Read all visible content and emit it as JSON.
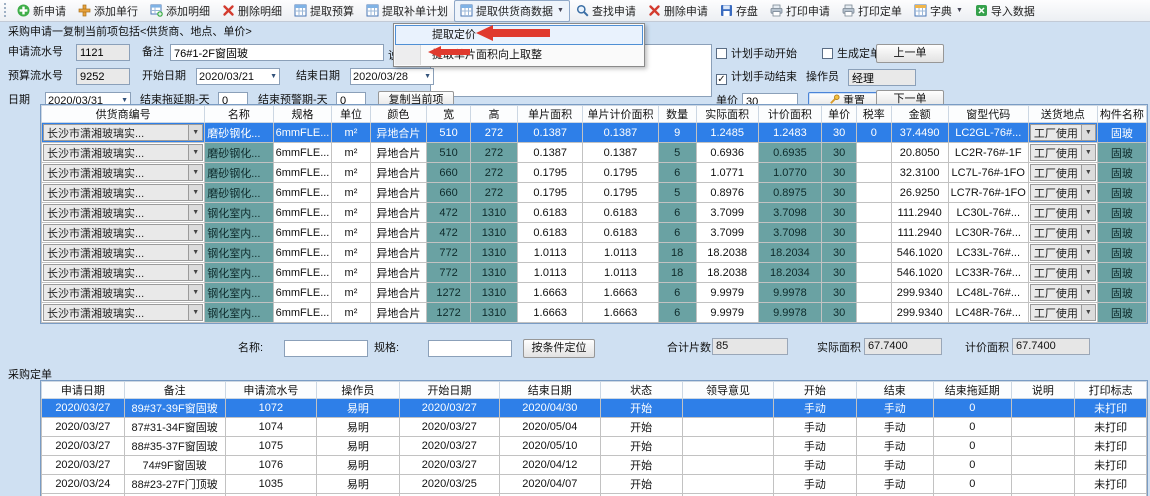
{
  "colors": {
    "accent_blue": "#2e7fe8",
    "teal": "#6aa2a3",
    "arrow_red": "#e03a2e",
    "panel": "#cfe0f2"
  },
  "toolbar": {
    "buttons": [
      {
        "name": "new-request-button",
        "label": "新申请",
        "icon": "plus-circle-icon",
        "type": "plus-circle"
      },
      {
        "name": "add-row-button",
        "label": "添加单行",
        "icon": "plus-icon",
        "type": "plus"
      },
      {
        "name": "add-detail-button",
        "label": "添加明细",
        "icon": "table-add-icon",
        "type": "table-add"
      },
      {
        "name": "delete-detail-button",
        "label": "删除明细",
        "icon": "delete-x-icon",
        "type": "x"
      },
      {
        "name": "extract-budget-button",
        "label": "提取预算",
        "icon": "table-icon",
        "type": "table"
      },
      {
        "name": "extract-supplement-plan-button",
        "label": "提取补单计划",
        "icon": "table-icon",
        "type": "table"
      },
      {
        "name": "extract-supplier-data-button",
        "label": "提取供货商数据",
        "icon": "table-icon",
        "type": "table",
        "dropdown": true,
        "pressed": true
      },
      {
        "name": "find-request-button",
        "label": "查找申请",
        "icon": "search-icon",
        "type": "search"
      },
      {
        "name": "delete-request-button",
        "label": "删除申请",
        "icon": "delete-x-icon",
        "type": "x"
      },
      {
        "name": "save-button",
        "label": "存盘",
        "icon": "save-icon",
        "type": "save"
      },
      {
        "name": "print-request-button",
        "label": "打印申请",
        "icon": "printer-icon",
        "type": "printer"
      },
      {
        "name": "print-order-button",
        "label": "打印定单",
        "icon": "printer-icon",
        "type": "printer"
      },
      {
        "name": "dictionary-button",
        "label": "字典",
        "icon": "table-icon",
        "type": "dict",
        "dropdown": true
      },
      {
        "name": "import-data-button",
        "label": "导入数据",
        "icon": "import-icon",
        "type": "import"
      }
    ]
  },
  "dropdown_menu": {
    "items": [
      {
        "name": "menu-item-extract-pricing",
        "label": "提取定价",
        "highlighted": true
      },
      {
        "name": "menu-item-extract-area-roundup",
        "label": "提取单片面积向上取整",
        "highlighted": false
      }
    ]
  },
  "form": {
    "title": "采购申请一复制当前项包括<供货商、地点、单价>",
    "serial_label": "申请流水号",
    "serial_value": "1121",
    "remark_label": "备注",
    "remark_value": "76#1-2F窗固玻",
    "desc_label": "说明",
    "budget_label": "预算流水号",
    "budget_value": "9252",
    "start_label": "开始日期",
    "start_value": "2020/03/21",
    "end_label": "结束日期",
    "end_value": "2020/03/28",
    "date_label": "日期",
    "date_value": "2020/03/31",
    "delay_label": "结束拖延期-天",
    "delay_value": "0",
    "warn_label": "结束预警期-天",
    "warn_value": "0",
    "copy_button": "复制当前项",
    "checkboxes": {
      "manual_start": {
        "label": "计划手动开始",
        "checked": false
      },
      "gen_order": {
        "label": "生成定单",
        "checked": false
      },
      "manual_end": {
        "label": "计划手动结束",
        "checked": true
      }
    },
    "operator_label": "操作员",
    "operator_value": "经理",
    "price_label": "单价",
    "price_value": "30",
    "reset_button": "重置",
    "prev_button": "上一单",
    "next_button": "下一单"
  },
  "table1": {
    "columns": [
      "供货商编号",
      "名称",
      "规格",
      "单位",
      "颜色",
      "宽",
      "高",
      "单片面积",
      "单片计价面积",
      "数量",
      "实际面积",
      "计价面积",
      "单价",
      "税率",
      "金额",
      "窗型代码",
      "送货地点",
      "构件名称"
    ],
    "selected_row": 0,
    "rows": [
      [
        "长沙市潇湘玻璃实...",
        "磨砂钢化...",
        "6mmFLE...",
        "m²",
        "异地合片",
        "510",
        "272",
        "0.1387",
        "0.1387",
        "9",
        "1.2485",
        "1.2483",
        "30",
        "0",
        "37.4490",
        "LC2GL-76#...",
        "工厂使用",
        "固玻"
      ],
      [
        "长沙市潇湘玻璃实...",
        "磨砂钢化...",
        "6mmFLE...",
        "m²",
        "异地合片",
        "510",
        "272",
        "0.1387",
        "0.1387",
        "5",
        "0.6936",
        "0.6935",
        "30",
        "",
        "20.8050",
        "LC2R-76#-1F",
        "工厂使用",
        "固玻"
      ],
      [
        "长沙市潇湘玻璃实...",
        "磨砂钢化...",
        "6mmFLE...",
        "m²",
        "异地合片",
        "660",
        "272",
        "0.1795",
        "0.1795",
        "6",
        "1.0771",
        "1.0770",
        "30",
        "",
        "32.3100",
        "LC7L-76#-1FO",
        "工厂使用",
        "固玻"
      ],
      [
        "长沙市潇湘玻璃实...",
        "磨砂钢化...",
        "6mmFLE...",
        "m²",
        "异地合片",
        "660",
        "272",
        "0.1795",
        "0.1795",
        "5",
        "0.8976",
        "0.8975",
        "30",
        "",
        "26.9250",
        "LC7R-76#-1FO",
        "工厂使用",
        "固玻"
      ],
      [
        "长沙市潇湘玻璃实...",
        "钢化室内...",
        "6mmFLE...",
        "m²",
        "异地合片",
        "472",
        "1310",
        "0.6183",
        "0.6183",
        "6",
        "3.7099",
        "3.7098",
        "30",
        "",
        "111.2940",
        "LC30L-76#...",
        "工厂使用",
        "固玻"
      ],
      [
        "长沙市潇湘玻璃实...",
        "钢化室内...",
        "6mmFLE...",
        "m²",
        "异地合片",
        "472",
        "1310",
        "0.6183",
        "0.6183",
        "6",
        "3.7099",
        "3.7098",
        "30",
        "",
        "111.2940",
        "LC30R-76#...",
        "工厂使用",
        "固玻"
      ],
      [
        "长沙市潇湘玻璃实...",
        "钢化室内...",
        "6mmFLE...",
        "m²",
        "异地合片",
        "772",
        "1310",
        "1.0113",
        "1.0113",
        "18",
        "18.2038",
        "18.2034",
        "30",
        "",
        "546.1020",
        "LC33L-76#...",
        "工厂使用",
        "固玻"
      ],
      [
        "长沙市潇湘玻璃实...",
        "钢化室内...",
        "6mmFLE...",
        "m²",
        "异地合片",
        "772",
        "1310",
        "1.0113",
        "1.0113",
        "18",
        "18.2038",
        "18.2034",
        "30",
        "",
        "546.1020",
        "LC33R-76#...",
        "工厂使用",
        "固玻"
      ],
      [
        "长沙市潇湘玻璃实...",
        "钢化室内...",
        "6mmFLE...",
        "m²",
        "异地合片",
        "1272",
        "1310",
        "1.6663",
        "1.6663",
        "6",
        "9.9979",
        "9.9978",
        "30",
        "",
        "299.9340",
        "LC48L-76#...",
        "工厂使用",
        "固玻"
      ],
      [
        "长沙市潇湘玻璃实...",
        "钢化室内...",
        "6mmFLE...",
        "m²",
        "异地合片",
        "1272",
        "1310",
        "1.6663",
        "1.6663",
        "6",
        "9.9979",
        "9.9978",
        "30",
        "",
        "299.9340",
        "LC48R-76#...",
        "工厂使用",
        "固玻"
      ]
    ]
  },
  "filter": {
    "name_label": "名称:",
    "name_value": "",
    "spec_label": "规格:",
    "spec_value": "",
    "locate_button": "按条件定位",
    "total_pieces_label": "合计片数",
    "total_pieces": "85",
    "actual_area_label": "实际面积",
    "actual_area": "67.7400",
    "billing_area_label": "计价面积",
    "billing_area": "67.7400"
  },
  "orders": {
    "title": "采购定单",
    "columns": [
      "申请日期",
      "备注",
      "申请流水号",
      "操作员",
      "开始日期",
      "结束日期",
      "状态",
      "领导意见",
      "开始",
      "结束",
      "结束拖延期",
      "说明",
      "打印标志"
    ],
    "selected_row": 0,
    "rows": [
      [
        "2020/03/27",
        "89#37-39F窗固玻",
        "1072",
        "易明",
        "2020/03/27",
        "2020/04/30",
        "开始",
        "",
        "手动",
        "手动",
        "0",
        "",
        "未打印"
      ],
      [
        "2020/03/27",
        "87#31-34F窗固玻",
        "1074",
        "易明",
        "2020/03/27",
        "2020/05/04",
        "开始",
        "",
        "手动",
        "手动",
        "0",
        "",
        "未打印"
      ],
      [
        "2020/03/27",
        "88#35-37F窗固玻",
        "1075",
        "易明",
        "2020/03/27",
        "2020/05/10",
        "开始",
        "",
        "手动",
        "手动",
        "0",
        "",
        "未打印"
      ],
      [
        "2020/03/27",
        "74#9F窗固玻",
        "1076",
        "易明",
        "2020/03/27",
        "2020/04/12",
        "开始",
        "",
        "手动",
        "手动",
        "0",
        "",
        "未打印"
      ],
      [
        "2020/03/24",
        "88#23-27F门顶玻",
        "1035",
        "易明",
        "2020/03/25",
        "2020/04/07",
        "开始",
        "",
        "手动",
        "手动",
        "0",
        "",
        "未打印"
      ]
    ]
  }
}
